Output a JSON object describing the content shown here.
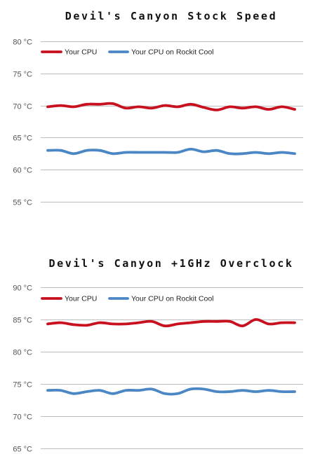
{
  "chart_data": [
    {
      "type": "line",
      "title": "Devil's Canyon Stock Speed",
      "xlabel": "",
      "ylabel": "",
      "ylim": [
        55,
        80
      ],
      "yticks": [
        55,
        60,
        65,
        70,
        75,
        80
      ],
      "ytick_suffix": " °C",
      "grid": true,
      "legend_position": "top-left",
      "series": [
        {
          "name": "Your CPU",
          "color": "#c8101f",
          "values": [
            69.8,
            70.0,
            69.8,
            70.2,
            70.2,
            70.3,
            69.6,
            69.8,
            69.6,
            70.0,
            69.8,
            70.2,
            69.7,
            69.3,
            69.8,
            69.6,
            69.8,
            69.4,
            69.8,
            69.4
          ]
        },
        {
          "name": "Your CPU on Rockit Cool",
          "color": "#4a87c4",
          "values": [
            63.0,
            63.0,
            62.5,
            63.0,
            63.0,
            62.5,
            62.7,
            62.7,
            62.7,
            62.7,
            62.7,
            63.2,
            62.8,
            63.0,
            62.5,
            62.5,
            62.7,
            62.5,
            62.7,
            62.5
          ]
        }
      ]
    },
    {
      "type": "line",
      "title": "Devil's Canyon +1GHz Overclock",
      "xlabel": "",
      "ylabel": "",
      "ylim": [
        65,
        90
      ],
      "yticks": [
        65,
        70,
        75,
        80,
        85,
        90
      ],
      "ytick_suffix": " °C",
      "grid": true,
      "legend_position": "top-left",
      "series": [
        {
          "name": "Your CPU",
          "color": "#c8101f",
          "values": [
            84.3,
            84.5,
            84.2,
            84.1,
            84.5,
            84.3,
            84.3,
            84.5,
            84.7,
            84.0,
            84.3,
            84.5,
            84.7,
            84.7,
            84.7,
            84.0,
            85.0,
            84.3,
            84.5,
            84.5
          ]
        },
        {
          "name": "Your CPU on Rockit Cool",
          "color": "#4a87c4",
          "values": [
            74.0,
            74.0,
            73.5,
            73.8,
            74.0,
            73.5,
            74.0,
            74.0,
            74.2,
            73.5,
            73.5,
            74.2,
            74.2,
            73.8,
            73.8,
            74.0,
            73.8,
            74.0,
            73.8,
            73.8
          ]
        }
      ]
    }
  ]
}
